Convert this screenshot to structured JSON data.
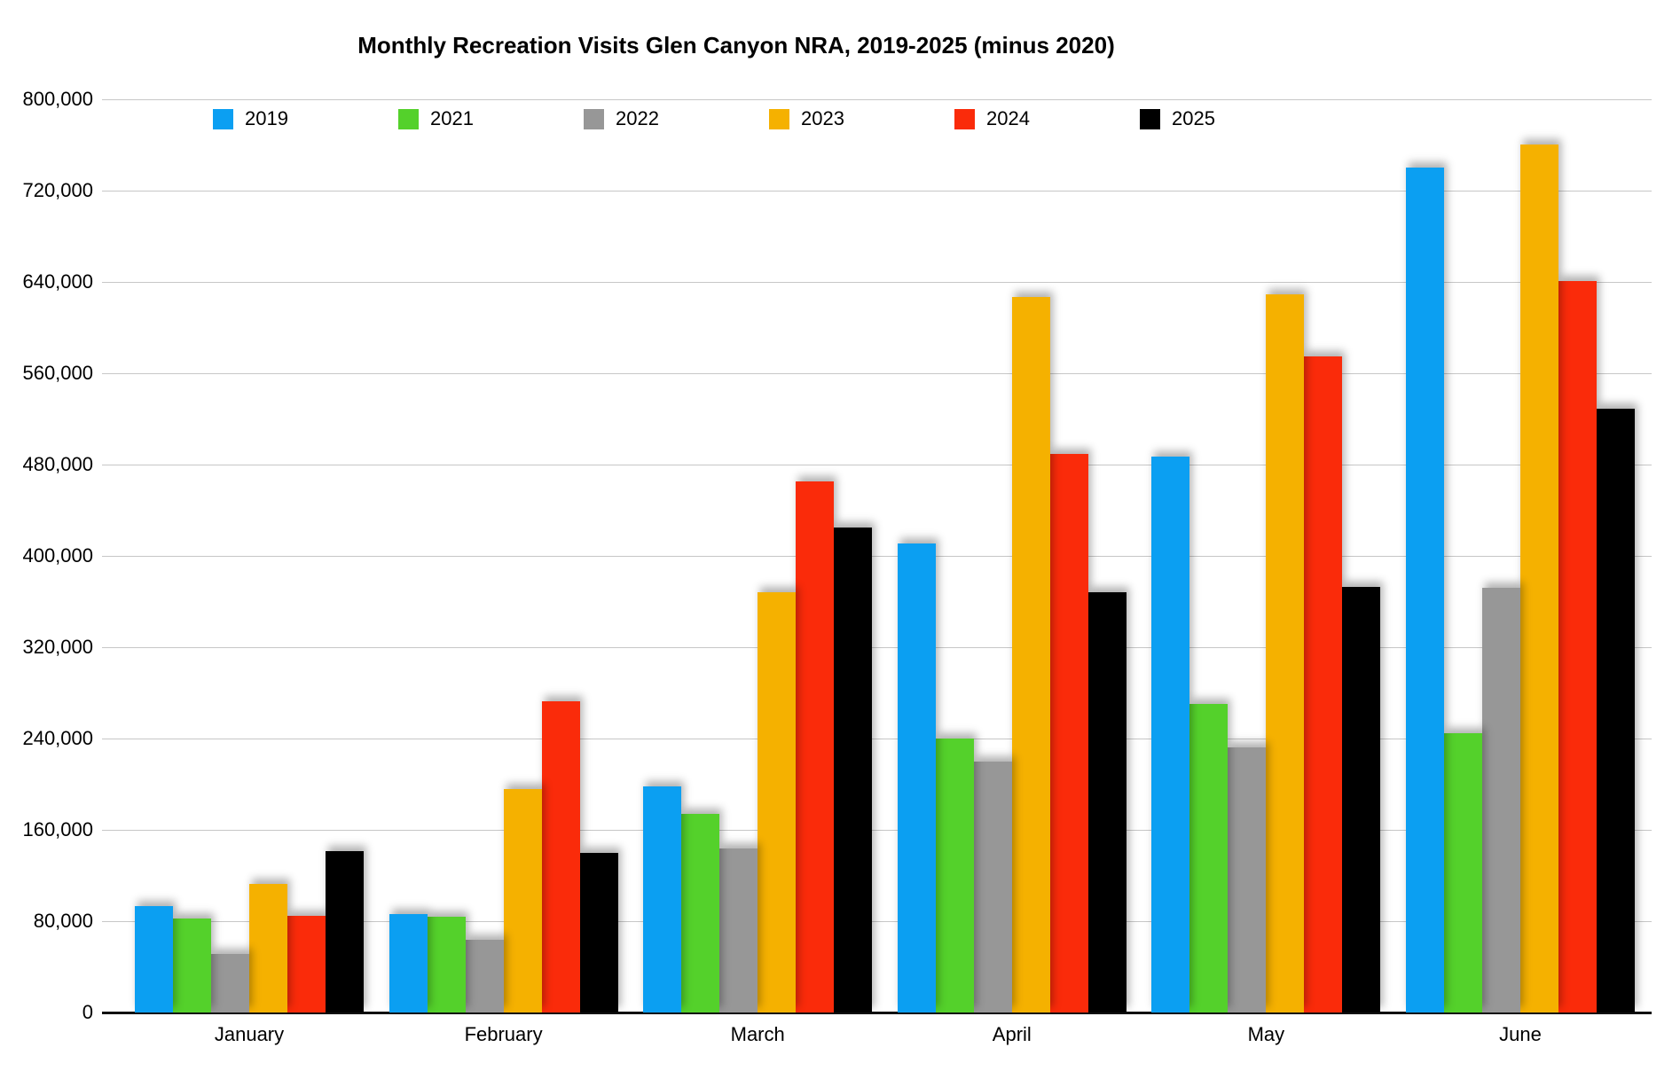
{
  "title": "Monthly Recreation Visits Glen Canyon NRA, 2019-2025 (minus 2020)",
  "chart_data": {
    "type": "bar",
    "title": "Monthly Recreation Visits Glen Canyon NRA, 2019-2025 (minus 2020)",
    "categories": [
      "January",
      "February",
      "March",
      "April",
      "May",
      "June"
    ],
    "series": [
      {
        "name": "2019",
        "color": "#0b9ff2",
        "values": [
          93000,
          86000,
          198000,
          411000,
          487000,
          740000
        ]
      },
      {
        "name": "2021",
        "color": "#54d12b",
        "values": [
          82000,
          84000,
          174000,
          240000,
          270000,
          245000
        ]
      },
      {
        "name": "2022",
        "color": "#979797",
        "values": [
          51000,
          64000,
          144000,
          220000,
          232000,
          372000
        ]
      },
      {
        "name": "2023",
        "color": "#f5b100",
        "values": [
          113000,
          196000,
          368000,
          627000,
          629000,
          760000
        ]
      },
      {
        "name": "2024",
        "color": "#fa2b0a",
        "values": [
          85000,
          273000,
          465000,
          489000,
          575000,
          641000
        ]
      },
      {
        "name": "2025",
        "color": "#000000",
        "values": [
          141000,
          140000,
          425000,
          368000,
          373000,
          529000
        ]
      }
    ],
    "ylim": [
      0,
      800000
    ],
    "y_tick_step": 80000,
    "y_ticks": [
      "0",
      "80,000",
      "160,000",
      "240,000",
      "320,000",
      "400,000",
      "480,000",
      "560,000",
      "640,000",
      "720,000",
      "800,000"
    ],
    "xlabel": "",
    "ylabel": "",
    "grid": true,
    "legend_position": "top-inside",
    "gridline_color": "#c7c7c7",
    "axis_line_color": "#111111",
    "background_color": "#ffffff"
  }
}
